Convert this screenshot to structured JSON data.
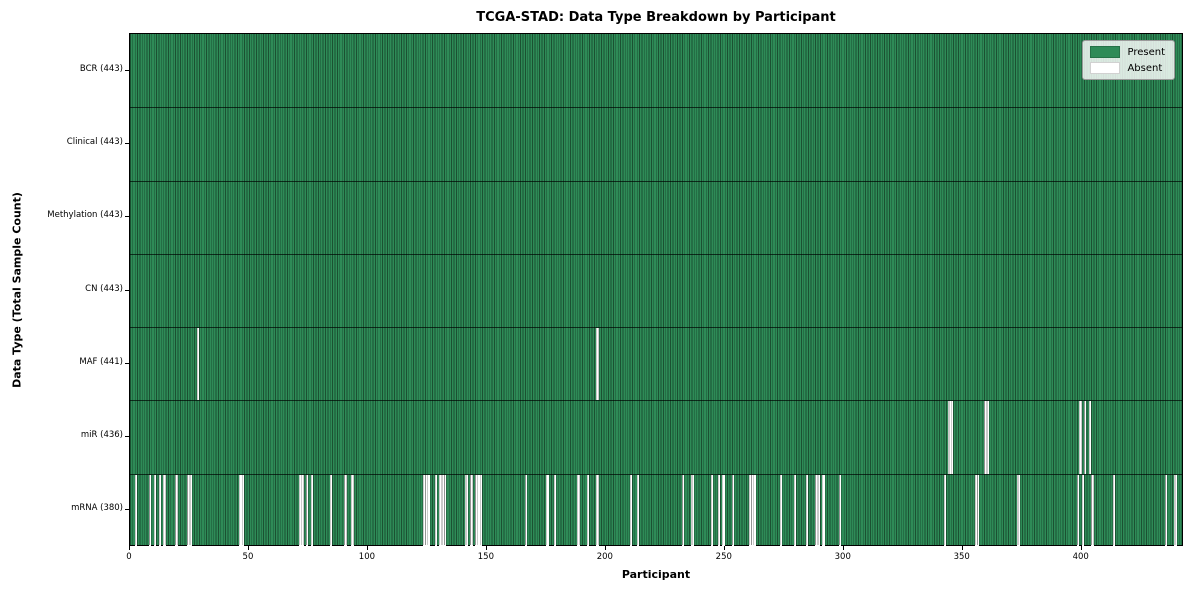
{
  "figure": {
    "title": "TCGA-STAD: Data Type Breakdown by Participant",
    "xlabel": "Participant",
    "ylabel": "Data Type (Total Sample Count)"
  },
  "legend": {
    "present_label": "Present",
    "absent_label": "Absent",
    "present_color": "#2e8b57",
    "absent_color": "#ffffff"
  },
  "chart_data": {
    "type": "heatmap",
    "title": "TCGA-STAD: Data Type Breakdown by Participant",
    "xlabel": "Participant",
    "ylabel": "Data Type (Total Sample Count)",
    "legend": [
      "Present",
      "Absent"
    ],
    "legend_position": "upper right",
    "grid": false,
    "n_participants": 443,
    "xlim": [
      0,
      443
    ],
    "x_ticks": [
      0,
      50,
      100,
      150,
      200,
      250,
      300,
      350,
      400
    ],
    "colors": {
      "present": "#2e8b57",
      "absent": "#ffffff",
      "edge": "#000000"
    },
    "rows": [
      {
        "data_type": "BCR",
        "label": "BCR (443)",
        "present_count": 443,
        "absent_participants": []
      },
      {
        "data_type": "Clinical",
        "label": "Clinical (443)",
        "present_count": 443,
        "absent_participants": []
      },
      {
        "data_type": "Methylation",
        "label": "Methylation (443)",
        "present_count": 443,
        "absent_participants": []
      },
      {
        "data_type": "CN",
        "label": "CN (443)",
        "present_count": 443,
        "absent_participants": []
      },
      {
        "data_type": "MAF",
        "label": "MAF (441)",
        "present_count": 441,
        "absent_participants": [
          28,
          196
        ]
      },
      {
        "data_type": "miR",
        "label": "miR (436)",
        "present_count": 436,
        "absent_participants": [
          344,
          345,
          359,
          360,
          399,
          401,
          403
        ]
      },
      {
        "data_type": "mRNA",
        "label": "mRNA (380)",
        "present_count": 380,
        "absent_participants": [
          2,
          8,
          10,
          12,
          14,
          19,
          24,
          25,
          46,
          47,
          71,
          72,
          74,
          76,
          84,
          90,
          93,
          123,
          124,
          125,
          128,
          130,
          131,
          132,
          141,
          143,
          145,
          146,
          147,
          166,
          175,
          178,
          188,
          192,
          196,
          210,
          213,
          232,
          236,
          244,
          247,
          249,
          253,
          260,
          261,
          262,
          273,
          279,
          284,
          288,
          289,
          291,
          298,
          342,
          355,
          356,
          373,
          398,
          400,
          404,
          413,
          435,
          439
        ]
      }
    ]
  }
}
